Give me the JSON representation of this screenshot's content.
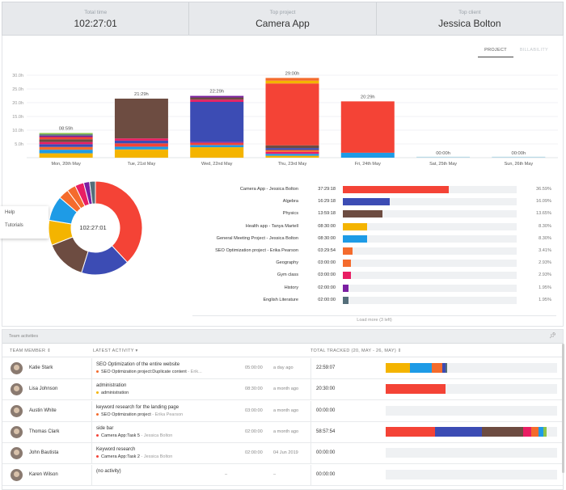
{
  "stats": [
    {
      "label": "Total time",
      "value": "102:27:01"
    },
    {
      "label": "Top project",
      "value": "Camera App"
    },
    {
      "label": "Top client",
      "value": "Jessica Bolton"
    }
  ],
  "toggle": {
    "project": "PROJECT",
    "billability": "BILLABILITY"
  },
  "help_menu": {
    "help": "Help",
    "tutorials": "Tutorials"
  },
  "chart_data": [
    {
      "type": "bar",
      "stacked": true,
      "categories": [
        "Mon, 20th May",
        "Tue, 21st May",
        "Wed, 22nd May",
        "Thu, 23rd May",
        "Fri, 24th May",
        "Sat, 25th May",
        "Sun, 26th May"
      ],
      "totals": [
        8.98,
        21.48,
        22.48,
        29.0,
        20.48,
        0,
        0
      ],
      "total_labels": [
        "08:59h",
        "21:29h",
        "22:29h",
        "29:00h",
        "20:29h",
        "00:00h",
        "00:00h"
      ],
      "yticks": [
        "30.0h",
        "25.0h",
        "20.0h",
        "15.0h",
        "10.0h",
        "5.0h"
      ],
      "ytick_values": [
        30,
        25,
        20,
        15,
        10,
        5
      ],
      "ylim": [
        0,
        30
      ],
      "segments": [
        [
          {
            "c": "#f4b400",
            "v": 1.6
          },
          {
            "c": "#1e9be6",
            "v": 1.3
          },
          {
            "c": "#f46b2c",
            "v": 1.0
          },
          {
            "c": "#3c4cb4",
            "v": 1.0
          },
          {
            "c": "#e91e63",
            "v": 0.8
          },
          {
            "c": "#6d4c41",
            "v": 1.0
          },
          {
            "c": "#f44336",
            "v": 0.8
          },
          {
            "c": "#7b1fa2",
            "v": 0.5
          },
          {
            "c": "#546e7a",
            "v": 0.5
          },
          {
            "c": "#8bc34a",
            "v": 0.48
          }
        ],
        [
          {
            "c": "#f4b400",
            "v": 3.0
          },
          {
            "c": "#1e9be6",
            "v": 1.0
          },
          {
            "c": "#f44336",
            "v": 1.2
          },
          {
            "c": "#3c4cb4",
            "v": 1.0
          },
          {
            "c": "#e91e63",
            "v": 0.8
          },
          {
            "c": "#6d4c41",
            "v": 14.48
          }
        ],
        [
          {
            "c": "#f4b400",
            "v": 3.8
          },
          {
            "c": "#1e9be6",
            "v": 0.8
          },
          {
            "c": "#f44336",
            "v": 0.8
          },
          {
            "c": "#7b1fa2",
            "v": 0.4
          },
          {
            "c": "#3c4cb4",
            "v": 14.5
          },
          {
            "c": "#e91e63",
            "v": 0.8
          },
          {
            "c": "#6d4c41",
            "v": 0.8
          },
          {
            "c": "#7b1fa2",
            "v": 0.58
          }
        ],
        [
          {
            "c": "#f4b400",
            "v": 0.7
          },
          {
            "c": "#1e9be6",
            "v": 0.7
          },
          {
            "c": "#e91e63",
            "v": 0.7
          },
          {
            "c": "#f46b2c",
            "v": 0.7
          },
          {
            "c": "#3c4cb4",
            "v": 0.7
          },
          {
            "c": "#6d4c41",
            "v": 1.0
          },
          {
            "c": "#f44336",
            "v": 22.5
          },
          {
            "c": "#f4b400",
            "v": 1.0
          },
          {
            "c": "#f46b2c",
            "v": 1.0
          }
        ],
        [
          {
            "c": "#1e9be6",
            "v": 1.8
          },
          {
            "c": "#f44336",
            "v": 18.68
          }
        ],
        [],
        []
      ]
    },
    {
      "type": "pie",
      "title": "102:27:01",
      "categories": [
        "Camera App",
        "Algebra",
        "Physics",
        "Health app",
        "General Meeting Project",
        "SEO Optimization project",
        "Geography",
        "Gym class",
        "History",
        "English Literature"
      ],
      "values": [
        36.59,
        16.09,
        13.65,
        8.3,
        8.3,
        3.41,
        2.93,
        2.93,
        1.95,
        1.95
      ],
      "colors": [
        "#f44336",
        "#3c4cb4",
        "#6d4c41",
        "#f4b400",
        "#1e9be6",
        "#f46b2c",
        "#f46b2c",
        "#e91e63",
        "#7b1fa2",
        "#546e7a"
      ]
    }
  ],
  "projects": [
    {
      "name": "Camera App - Jessica Bolton",
      "time": "37:29:18",
      "pct": "36.59%",
      "value": 36.59,
      "color": "#f44336"
    },
    {
      "name": "Algebra",
      "time": "16:29:18",
      "pct": "16.09%",
      "value": 16.09,
      "color": "#3c4cb4"
    },
    {
      "name": "Physics",
      "time": "13:59:18",
      "pct": "13.65%",
      "value": 13.65,
      "color": "#6d4c41"
    },
    {
      "name": "Health app - Tanya Martell",
      "time": "08:30:00",
      "pct": "8.30%",
      "value": 8.3,
      "color": "#f4b400"
    },
    {
      "name": "General Meeting Project - Jessica Bolton",
      "time": "08:30:00",
      "pct": "8.30%",
      "value": 8.3,
      "color": "#1e9be6"
    },
    {
      "name": "SEO Optimization project - Erika Pearson",
      "time": "03:29:54",
      "pct": "3.41%",
      "value": 3.41,
      "color": "#f46b2c"
    },
    {
      "name": "Geography",
      "time": "03:00:00",
      "pct": "2.93%",
      "value": 2.93,
      "color": "#f46b2c"
    },
    {
      "name": "Gym class",
      "time": "03:00:00",
      "pct": "2.93%",
      "value": 2.93,
      "color": "#e91e63"
    },
    {
      "name": "History",
      "time": "02:00:00",
      "pct": "1.95%",
      "value": 1.95,
      "color": "#7b1fa2"
    },
    {
      "name": "English Literature",
      "time": "02:00:00",
      "pct": "1.95%",
      "value": 1.95,
      "color": "#546e7a"
    }
  ],
  "load_more": "Load more (3 left)",
  "team": {
    "title": "Team activities",
    "col_member": "TEAM MEMBER ⇕",
    "col_activity": "LATEST ACTIVITY ▾",
    "col_total": "TOTAL TRACKED (20, MAY - 26, MAY) ⇕",
    "rows": [
      {
        "name": "Katie Stark",
        "activity": "SEO Optimization of the entire website",
        "project": "SEO Optimization project:Duplicate content",
        "client": " - Erik...",
        "dot": "#f46b2c",
        "duration": "05:00:00",
        "ago": "a day ago",
        "total": "22:59:07",
        "segments": [
          {
            "c": "#f4b400",
            "v": 14
          },
          {
            "c": "#1e9be6",
            "v": 13
          },
          {
            "c": "#f46b2c",
            "v": 6
          },
          {
            "c": "#3c4cb4",
            "v": 2
          },
          {
            "c": "#546e7a",
            "v": 1
          }
        ]
      },
      {
        "name": "Lisa Johnson",
        "activity": "administration",
        "project": "administration",
        "client": "",
        "dot": "#f4b400",
        "duration": "08:30:00",
        "ago": "a month ago",
        "total": "20:30:00",
        "segments": [
          {
            "c": "#f44336",
            "v": 35
          }
        ]
      },
      {
        "name": "Austin White",
        "activity": "keyword research for the landing page",
        "project": "SEO Optimization project",
        "client": " - Erika Pearson",
        "dot": "#f46b2c",
        "duration": "03:00:00",
        "ago": "a month ago",
        "total": "00:00:00",
        "segments": []
      },
      {
        "name": "Thomas Clark",
        "activity": "side bar",
        "project": "Camera App:Task 5",
        "client": " - Jessica Bolton",
        "dot": "#f44336",
        "duration": "02:00:00",
        "ago": "a month ago",
        "total": "58:57:54",
        "segments": [
          {
            "c": "#f44336",
            "v": 29
          },
          {
            "c": "#3c4cb4",
            "v": 27
          },
          {
            "c": "#6d4c41",
            "v": 24
          },
          {
            "c": "#e91e63",
            "v": 5
          },
          {
            "c": "#f46b2c",
            "v": 4
          },
          {
            "c": "#1e9be6",
            "v": 3
          },
          {
            "c": "#8bc34a",
            "v": 2
          }
        ]
      },
      {
        "name": "John Bautista",
        "activity": "Keyword research",
        "project": "Camera App:Task 2",
        "client": " - Jessica Bolton",
        "dot": "#f44336",
        "duration": "02:00:00",
        "ago": "04 Jun 2019",
        "total": "00:00:00",
        "segments": []
      },
      {
        "name": "Karen Wilson",
        "activity": "(no activity)",
        "project": "",
        "client": "",
        "dot": "",
        "duration": "–",
        "ago": "–",
        "total": "00:00:00",
        "segments": []
      }
    ]
  }
}
